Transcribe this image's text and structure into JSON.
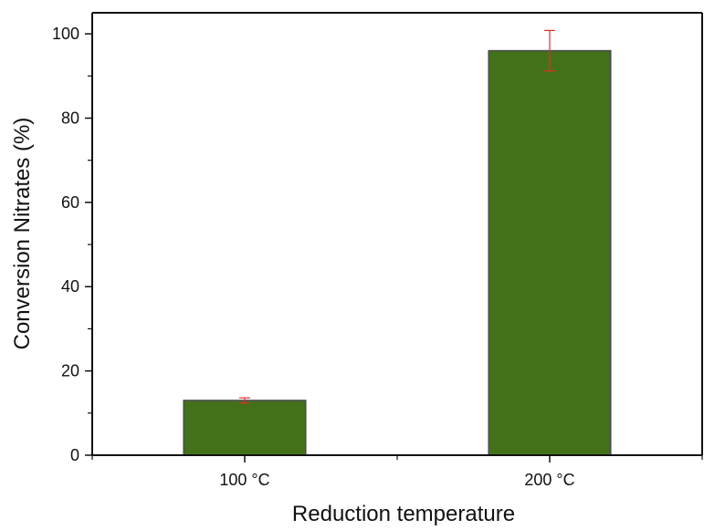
{
  "chart_data": {
    "type": "bar",
    "title": "",
    "xlabel": "Reduction temperature",
    "ylabel": "Conversion Nitrates (%)",
    "categories": [
      "100 °C",
      "200 °C"
    ],
    "values": [
      13,
      96
    ],
    "error_upper": [
      13.6,
      100.8
    ],
    "error_lower": [
      12.4,
      91.2
    ],
    "ylim": [
      0,
      105
    ],
    "yticks": [
      0,
      20,
      40,
      60,
      80,
      100
    ],
    "grid": false,
    "legend": "none",
    "bar_color": "#43711a",
    "bar_edge_color": "#4a4a55",
    "error_bar_color": "#e0302a"
  }
}
